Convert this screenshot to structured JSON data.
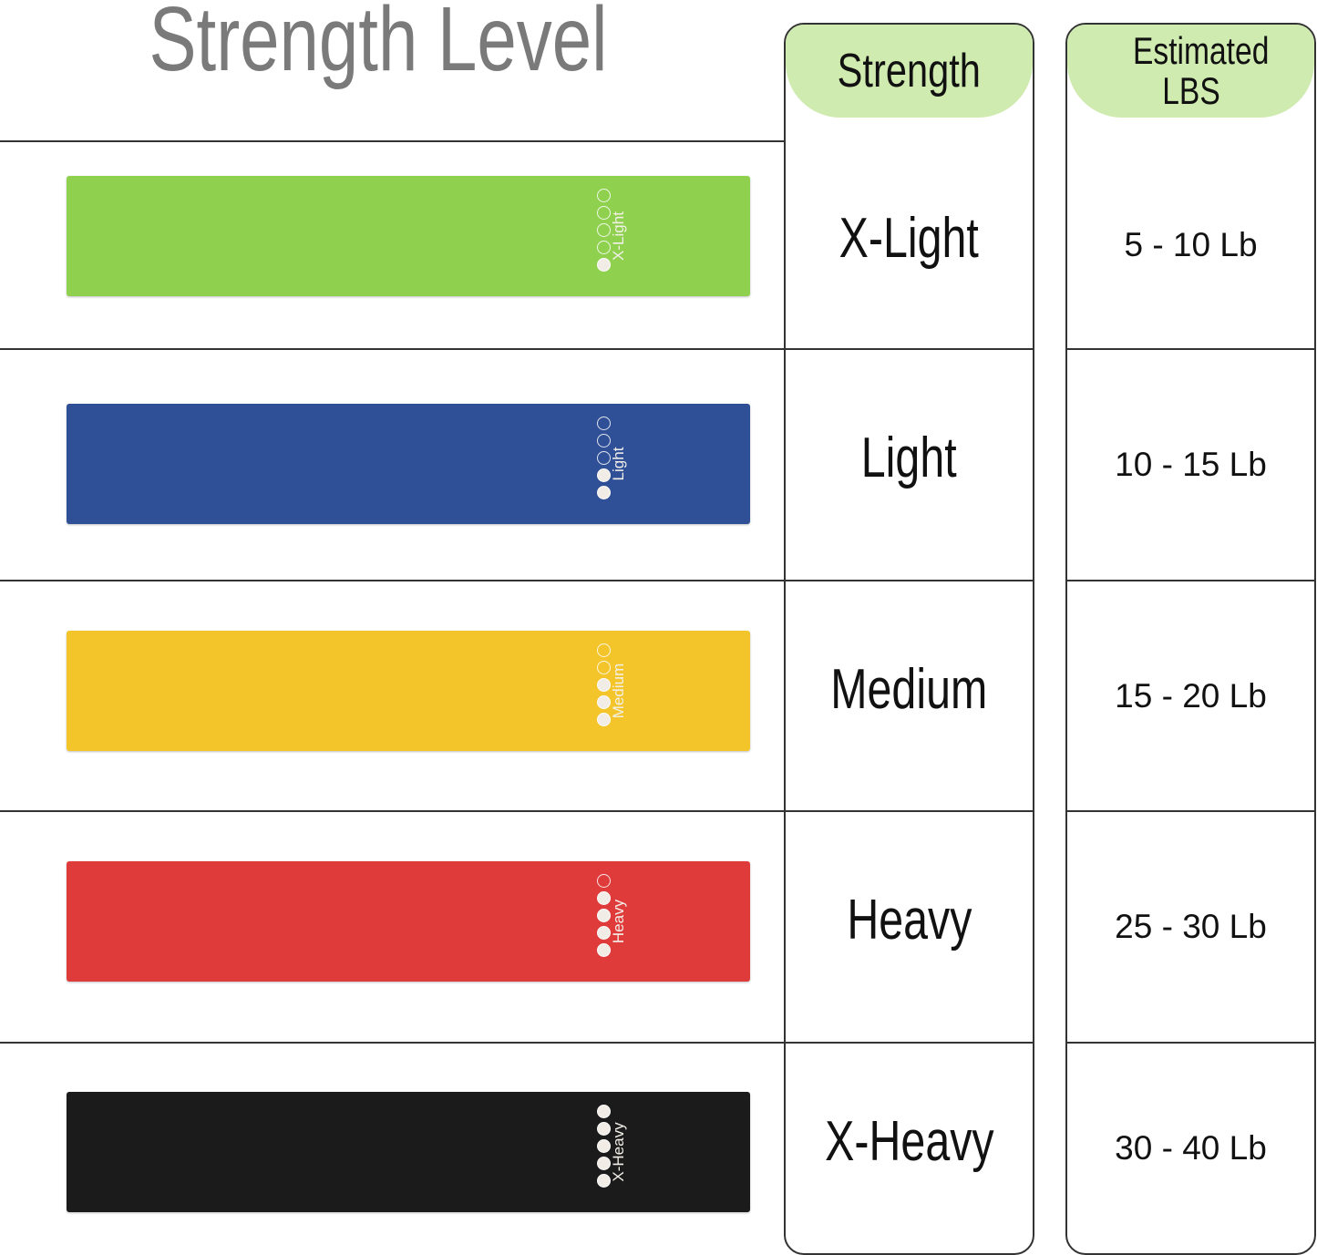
{
  "title": "Strength Level",
  "headers": {
    "strength": "Strength",
    "lbs": "Estimated LBS"
  },
  "rows": [
    {
      "band_label": "X-Light",
      "strength": "X-Light",
      "lbs": "5 - 10 Lb",
      "color": "#8fd14f",
      "level": 1
    },
    {
      "band_label": "Light",
      "strength": "Light",
      "lbs": "10 - 15 Lb",
      "color": "#2f4f96",
      "level": 2
    },
    {
      "band_label": "Medium",
      "strength": "Medium",
      "lbs": "15 - 20 Lb",
      "color": "#f3c52a",
      "level": 3
    },
    {
      "band_label": "Heavy",
      "strength": "Heavy",
      "lbs": "25 - 30 Lb",
      "color": "#e03b3b",
      "level": 4
    },
    {
      "band_label": "X-Heavy",
      "strength": "X-Heavy",
      "lbs": "30 - 40 Lb",
      "color": "#1b1b1b",
      "level": 5
    }
  ],
  "header_color": "#d0ebb0"
}
